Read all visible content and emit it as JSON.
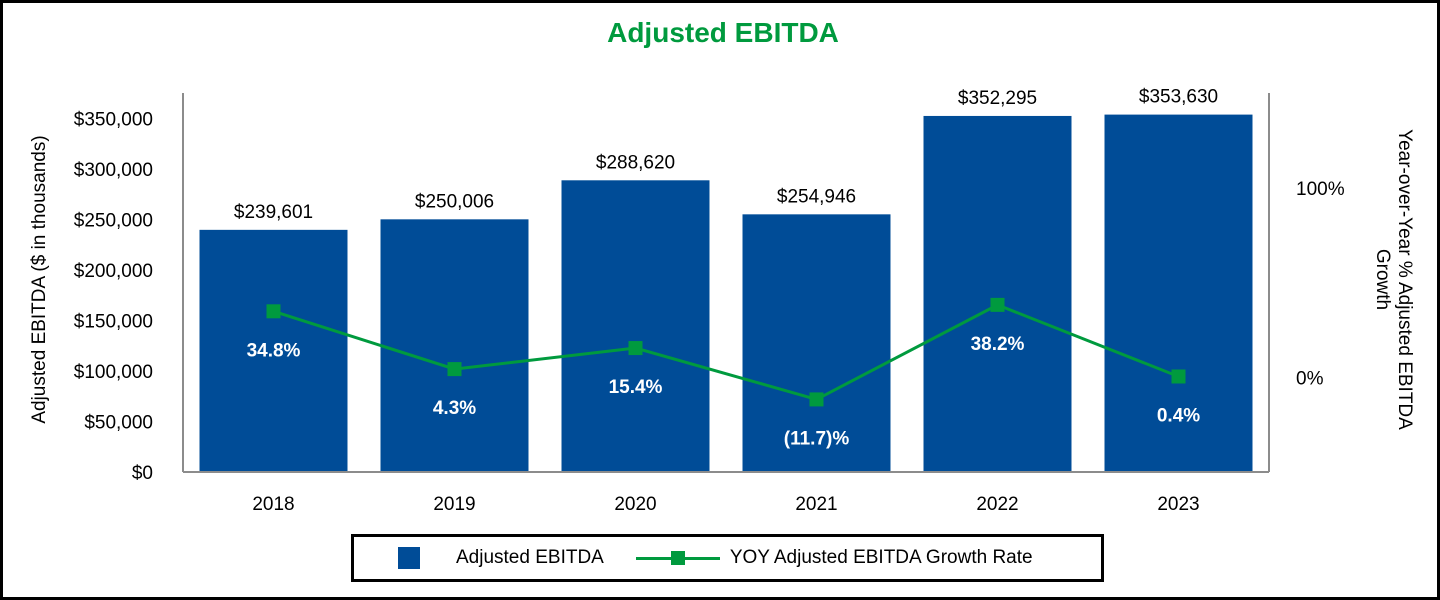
{
  "chart_data": {
    "type": "bar",
    "title": "Adjusted EBITDA",
    "categories": [
      "2018",
      "2019",
      "2020",
      "2021",
      "2022",
      "2023"
    ],
    "series": [
      {
        "name": "Adjusted EBITDA",
        "type": "bar",
        "axis": "left",
        "values": [
          239601,
          250006,
          288620,
          254946,
          352295,
          353630
        ],
        "labels": [
          "$239,601",
          "$250,006",
          "$288,620",
          "$254,946",
          "$352,295",
          "$353,630"
        ]
      },
      {
        "name": "YOY Adjusted EBITDA Growth Rate",
        "type": "line",
        "axis": "right",
        "values": [
          34.8,
          4.3,
          15.4,
          -11.7,
          38.2,
          0.4
        ],
        "labels": [
          "34.8%",
          "4.3%",
          "15.4%",
          "(11.7)%",
          "38.2%",
          "0.4%"
        ]
      }
    ],
    "ylabel": "Adjusted EBITDA ($ in thousands)",
    "y2label": "Year-over-Year % Adjusted EBITDA Growth",
    "ylim": [
      0,
      375000
    ],
    "yticks": [
      0,
      50000,
      100000,
      150000,
      200000,
      250000,
      300000,
      350000
    ],
    "yticklabels": [
      "$0",
      "$50,000",
      "$100,000",
      "$150,000",
      "$200,000",
      "$250,000",
      "$300,000",
      "$350,000"
    ],
    "y2lim": [
      -50,
      150
    ],
    "y2ticks": [
      0,
      100
    ],
    "y2ticklabels": [
      "0%",
      "100%"
    ],
    "legend_position": "bottom",
    "colors": {
      "bar": "#004c97",
      "line": "#009a3e",
      "title": "#009a3e"
    }
  }
}
